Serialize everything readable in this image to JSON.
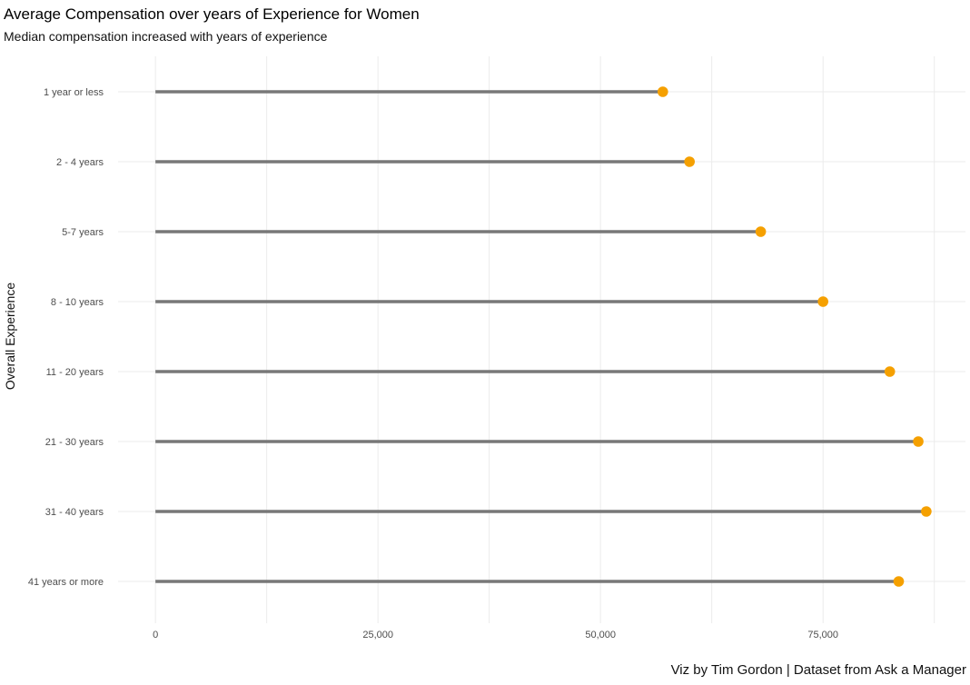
{
  "chart_data": {
    "type": "lollipop",
    "title": "Average Compensation over years of Experience for Women",
    "subtitle": "Median compensation increased with years of experience",
    "caption": "Viz by Tim Gordon | Dataset from Ask a Manager",
    "ylabel": "Overall Experience",
    "xlabel": "",
    "categories": [
      "1 year or less",
      "2 - 4 years",
      "5-7 years",
      "8 - 10 years",
      "11 - 20 years",
      "21 - 30 years",
      "31 - 40 years",
      "41 years or more"
    ],
    "values": [
      57000,
      60000,
      68000,
      75000,
      82500,
      85700,
      86600,
      83500
    ],
    "x_ticks": [
      0,
      25000,
      50000,
      75000
    ],
    "x_tick_labels": [
      "0",
      "25,000",
      "50,000",
      "75,000"
    ],
    "xlim": [
      -4200,
      91000
    ],
    "grid": true,
    "colors": {
      "segment": "#787878",
      "point": "#f5a000",
      "grid": "#ebebeb"
    }
  }
}
